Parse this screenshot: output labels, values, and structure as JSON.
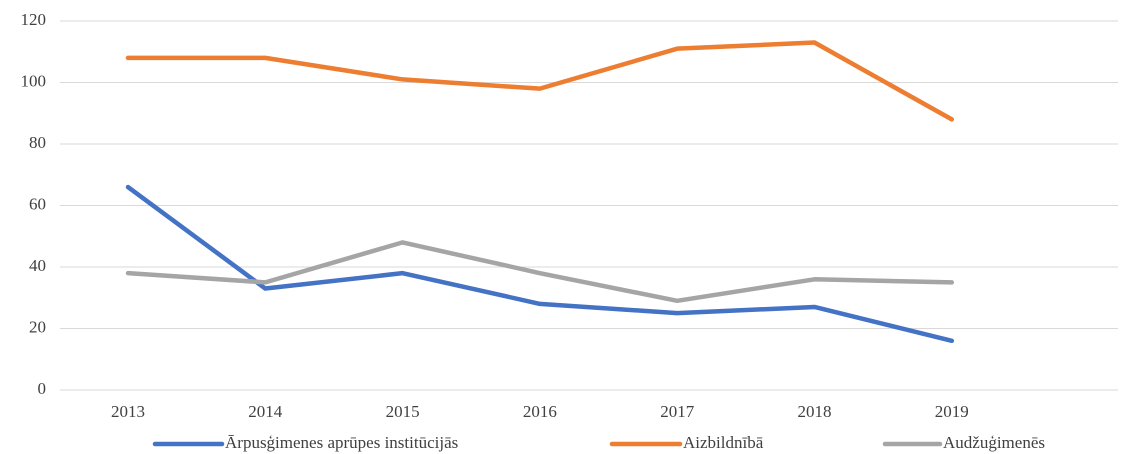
{
  "chart_data": {
    "type": "line",
    "categories": [
      "2013",
      "2014",
      "2015",
      "2016",
      "2017",
      "2018",
      "2019"
    ],
    "series": [
      {
        "name": "Ārpusģimenes aprūpes institūcijās",
        "color": "#4472c4",
        "values": [
          66,
          33,
          38,
          28,
          25,
          27,
          16
        ]
      },
      {
        "name": "Aizbildnībā",
        "color": "#ed7d31",
        "values": [
          108,
          108,
          101,
          98,
          111,
          113,
          88
        ]
      },
      {
        "name": "Audžuģimenēs",
        "color": "#a5a5a5",
        "values": [
          38,
          35,
          48,
          38,
          29,
          36,
          35
        ]
      }
    ],
    "ylim": [
      0,
      120
    ],
    "yticks": [
      0,
      20,
      40,
      60,
      80,
      100,
      120
    ],
    "grid": true,
    "legend": "bottom"
  }
}
